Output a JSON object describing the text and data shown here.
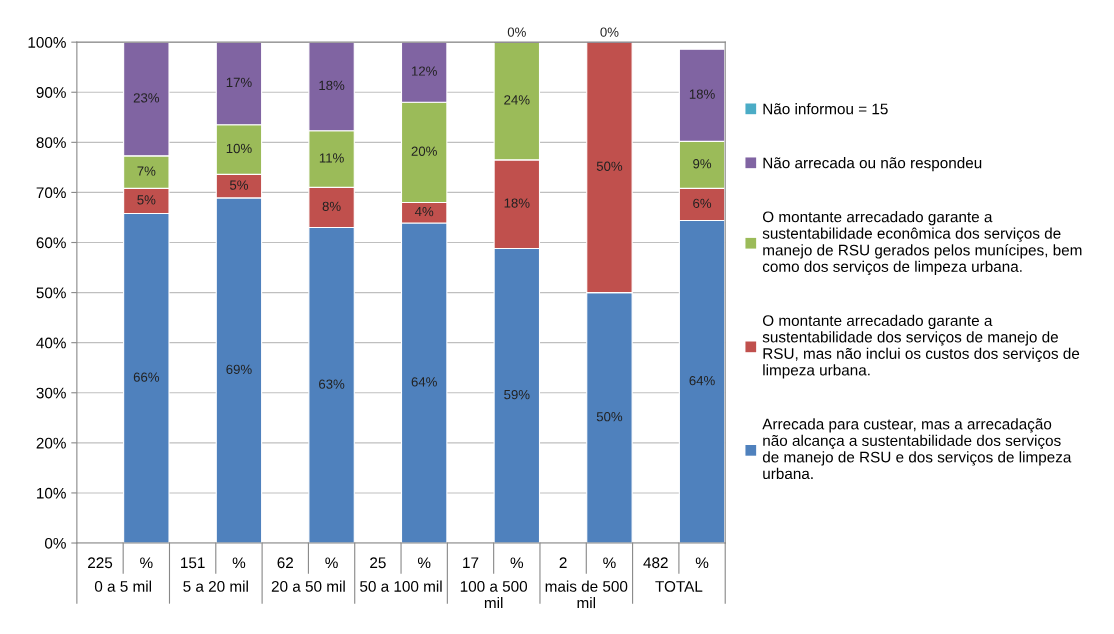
{
  "chart_data": {
    "type": "bar",
    "stacked": true,
    "categories": [
      "225",
      "%",
      "151",
      "%",
      "62",
      "%",
      "25",
      "%",
      "17",
      "%",
      "2",
      "%",
      "482",
      "%"
    ],
    "annotations": [
      "0 a 5 mil",
      "5 a 20 mil",
      "20 a 50 mil",
      "50 a 100 mil",
      "100 a 500\nmil",
      "mais de 500\nmil",
      "TOTAL"
    ],
    "series": [
      {
        "name": "Arrecada para custear, mas a arrecadação\nnão alcança a sustentabilidade dos serviços\nde manejo de RSU e dos serviços de limpeza\nurbana.",
        "color": "#4f81bd",
        "values": [
          null,
          65.8,
          null,
          68.9,
          null,
          63,
          null,
          63.9,
          null,
          58.8,
          null,
          50,
          null,
          64.4
        ],
        "value_labels": [
          null,
          "66%",
          null,
          "69%",
          null,
          "63%",
          null,
          "64%",
          null,
          "59%",
          null,
          "50%",
          null,
          "64%"
        ]
      },
      {
        "name": "O montante arrecadado garante a\nsustentabilidade dos serviços de manejo de\nRSU, mas não inclui os custos dos serviços de\nlimpeza urbana.",
        "color": "#c0504d",
        "values": [
          null,
          5,
          null,
          4.7,
          null,
          8,
          null,
          4.1,
          null,
          17.7,
          null,
          50,
          null,
          6.4
        ],
        "value_labels": [
          null,
          "5%",
          null,
          "5%",
          null,
          "8%",
          null,
          "4%",
          null,
          "18%",
          null,
          "50%",
          null,
          "6%"
        ]
      },
      {
        "name": "O montante arrecadado garante a\nsustentabilidade econômica dos serviços de\nmanejo de RSU gerados pelos munícipes, bem\ncomo dos serviços de limpeza urbana.",
        "color": "#9bbb59",
        "values": [
          null,
          6.5,
          null,
          9.9,
          null,
          11.3,
          null,
          20,
          null,
          23.5,
          null,
          null,
          null,
          9.4
        ],
        "value_labels": [
          null,
          "7%",
          null,
          "10%",
          null,
          "11%",
          null,
          "20%",
          null,
          "24%",
          null,
          null,
          null,
          "9%"
        ]
      },
      {
        "name": "Não arrecada ou não respondeu",
        "color": "#8064a2",
        "values": [
          null,
          22.7,
          null,
          16.5,
          null,
          17.7,
          null,
          12,
          null,
          0,
          null,
          0,
          null,
          18.4
        ],
        "value_labels": [
          null,
          "23%",
          null,
          "17%",
          null,
          "18%",
          null,
          "12%",
          null,
          "0%",
          null,
          "0%",
          null,
          "18%"
        ]
      },
      {
        "name": "Não informou = 15",
        "color": "#4bacc6",
        "values": [
          null,
          null,
          null,
          null,
          null,
          null,
          null,
          null,
          null,
          null,
          null,
          null,
          null,
          null
        ]
      }
    ],
    "ylim": [
      0,
      100
    ],
    "yticks": [
      {
        "value": 0,
        "label": "0%"
      },
      {
        "value": 10,
        "label": "10%"
      },
      {
        "value": 20,
        "label": "20%"
      },
      {
        "value": 30,
        "label": "30%"
      },
      {
        "value": 40,
        "label": "40%"
      },
      {
        "value": 50,
        "label": "50%"
      },
      {
        "value": 60,
        "label": "60%"
      },
      {
        "value": 70,
        "label": "70%"
      },
      {
        "value": 80,
        "label": "80%"
      },
      {
        "value": 90,
        "label": "90%"
      },
      {
        "value": 100,
        "label": "100%"
      }
    ],
    "grid": "y",
    "legend": "right"
  }
}
